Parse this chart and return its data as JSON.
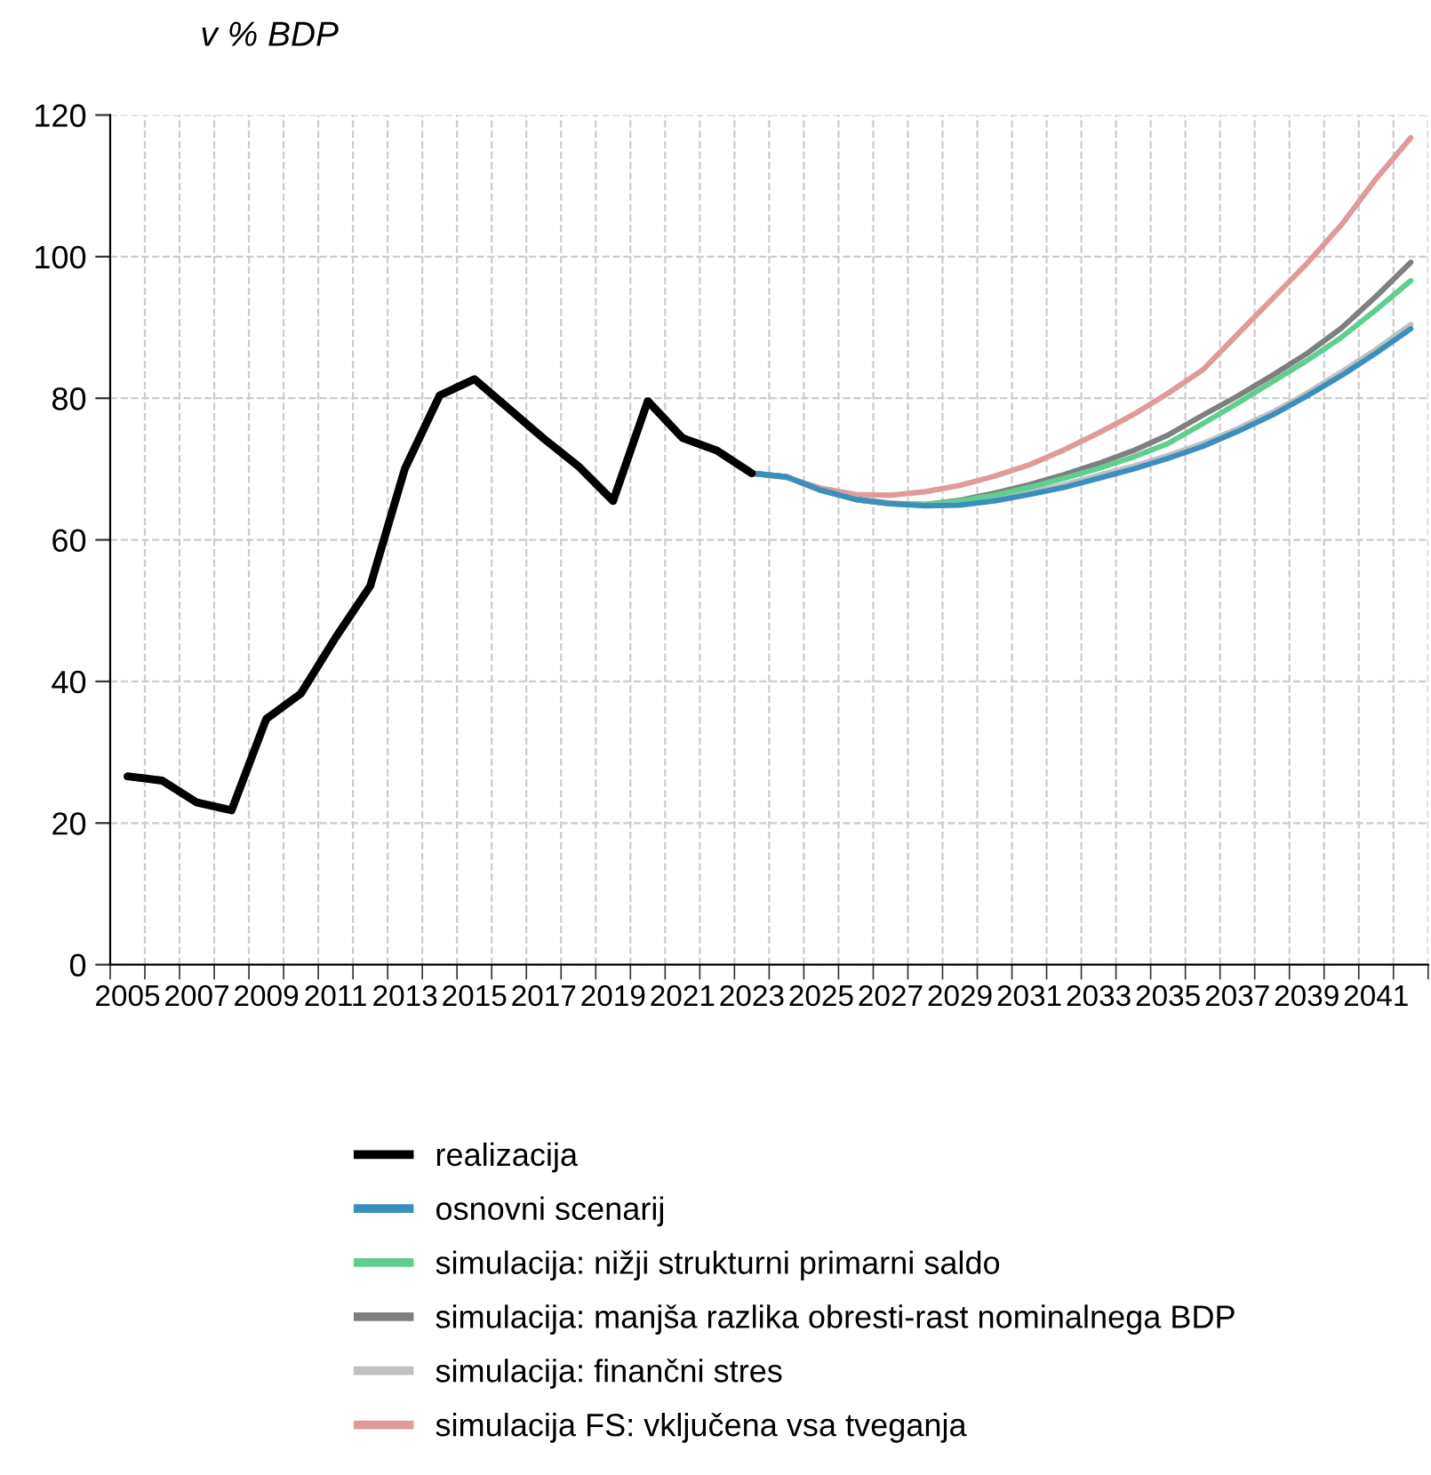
{
  "chart_data": {
    "type": "line",
    "ylabel": "v % BDP",
    "categories": [
      "2005",
      null,
      "2007",
      null,
      "2009",
      null,
      "2011",
      null,
      "2013",
      null,
      "2015",
      null,
      "2017",
      null,
      "2019",
      null,
      "2021",
      null,
      "2023",
      null,
      "2025",
      null,
      "2027",
      null,
      "2029",
      null,
      "2031",
      null,
      "2033",
      null,
      "2035",
      null,
      "2037",
      null,
      "2039",
      null,
      "2041",
      null
    ],
    "series": [
      {
        "name": "realizacija",
        "color": "#000000",
        "values": [
          26.6,
          26.0,
          22.9,
          21.8,
          34.7,
          38.3,
          46.2,
          53.5,
          70.1,
          80.4,
          82.7,
          78.5,
          74.3,
          70.4,
          65.5,
          79.6,
          74.4,
          72.6,
          69.4,
          null,
          null,
          null,
          null,
          null,
          null,
          null,
          null,
          null,
          null,
          null,
          null,
          null,
          null,
          null,
          null,
          null,
          null,
          null
        ]
      },
      {
        "name": "osnovni scenarij",
        "color": "#3a8fbf",
        "values": [
          null,
          null,
          null,
          null,
          null,
          null,
          null,
          null,
          null,
          null,
          null,
          null,
          null,
          null,
          null,
          null,
          null,
          null,
          69.4,
          68.9,
          67.0,
          65.7,
          65.1,
          64.8,
          64.9,
          65.5,
          66.4,
          67.4,
          68.7,
          70.0,
          71.5,
          73.2,
          75.3,
          77.6,
          80.3,
          83.2,
          86.4,
          89.8
        ]
      },
      {
        "name": "simulacija: nižji strukturni primarni saldo",
        "color": "#5fcf8f",
        "values": [
          null,
          null,
          null,
          null,
          null,
          null,
          null,
          null,
          null,
          null,
          null,
          null,
          null,
          null,
          null,
          null,
          null,
          null,
          69.4,
          68.9,
          67.0,
          65.7,
          65.1,
          65.0,
          65.5,
          66.3,
          67.4,
          68.7,
          70.1,
          71.7,
          73.6,
          76.4,
          79.3,
          82.3,
          85.3,
          88.6,
          92.5,
          96.6
        ]
      },
      {
        "name": "simulacija: manjša razlika obresti-rast nominalnega BDP",
        "color": "#7f7f7f",
        "values": [
          null,
          null,
          null,
          null,
          null,
          null,
          null,
          null,
          null,
          null,
          null,
          null,
          null,
          null,
          null,
          null,
          null,
          null,
          69.4,
          68.9,
          67.0,
          65.7,
          65.1,
          65.0,
          65.6,
          66.6,
          67.8,
          69.2,
          70.8,
          72.6,
          74.8,
          77.6,
          80.3,
          83.2,
          86.3,
          89.9,
          94.4,
          99.2
        ]
      },
      {
        "name": "simulacija: finančni stres",
        "color": "#c0c0c0",
        "values": [
          null,
          null,
          null,
          null,
          null,
          null,
          null,
          null,
          null,
          null,
          null,
          null,
          null,
          null,
          null,
          null,
          null,
          null,
          69.4,
          68.9,
          67.0,
          65.8,
          65.2,
          65.0,
          65.1,
          65.8,
          66.7,
          67.8,
          69.1,
          70.4,
          71.9,
          73.6,
          75.7,
          78.0,
          80.7,
          83.7,
          86.9,
          90.4
        ]
      },
      {
        "name": "simulacija FS: vključena vsa tveganja",
        "color": "#e09a9a",
        "values": [
          null,
          null,
          null,
          null,
          null,
          null,
          null,
          null,
          null,
          null,
          null,
          null,
          null,
          null,
          null,
          null,
          null,
          null,
          69.4,
          68.8,
          67.3,
          66.4,
          66.3,
          66.8,
          67.7,
          69.0,
          70.6,
          72.7,
          75.1,
          77.7,
          80.7,
          84.0,
          89.0,
          94.0,
          99.0,
          104.5,
          111.0,
          116.8
        ]
      }
    ],
    "ylim": [
      0,
      120
    ],
    "yticks": [
      0,
      20,
      40,
      60,
      80,
      100,
      120
    ],
    "grid": true,
    "legend": "bottom",
    "marker": "none",
    "line_style": "solid"
  }
}
